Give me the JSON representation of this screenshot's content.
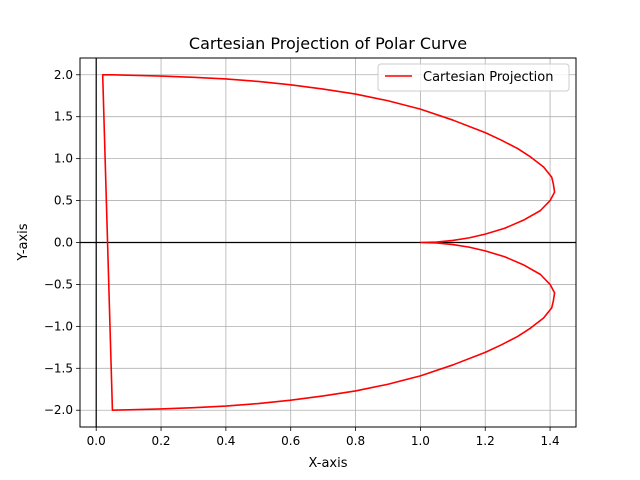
{
  "chart_data": {
    "type": "line",
    "title": "Cartesian Projection of Polar Curve",
    "xlabel": "X-axis",
    "ylabel": "Y-axis",
    "xlim": [
      -0.05,
      1.48
    ],
    "ylim": [
      -2.2,
      2.2
    ],
    "xticks": [
      0.0,
      0.2,
      0.4,
      0.6,
      0.8,
      1.0,
      1.2,
      1.4
    ],
    "xtick_labels": [
      "0.0",
      "0.2",
      "0.4",
      "0.6",
      "0.8",
      "1.0",
      "1.2",
      "1.4"
    ],
    "yticks": [
      -2.0,
      -1.5,
      -1.0,
      -0.5,
      0.0,
      0.5,
      1.0,
      1.5,
      2.0
    ],
    "ytick_labels": [
      "−2.0",
      "−1.5",
      "−1.0",
      "−0.5",
      "0.0",
      "0.5",
      "1.0",
      "1.5",
      "2.0"
    ],
    "grid": true,
    "reference_lines": {
      "x": 0,
      "y": 0,
      "color": "#000000"
    },
    "legend_position": "upper-right",
    "series": [
      {
        "name": "Cartesian Projection",
        "color": "#ff0000",
        "points": [
          [
            1.0,
            0.0
          ],
          [
            1.05,
            0.005
          ],
          [
            1.1,
            0.025
          ],
          [
            1.15,
            0.055
          ],
          [
            1.2,
            0.1
          ],
          [
            1.26,
            0.17
          ],
          [
            1.32,
            0.27
          ],
          [
            1.37,
            0.38
          ],
          [
            1.4,
            0.5
          ],
          [
            1.414,
            0.6
          ],
          [
            1.41,
            0.7
          ],
          [
            1.405,
            0.78
          ],
          [
            1.38,
            0.9
          ],
          [
            1.34,
            1.02
          ],
          [
            1.3,
            1.12
          ],
          [
            1.25,
            1.22
          ],
          [
            1.2,
            1.31
          ],
          [
            1.1,
            1.46
          ],
          [
            1.0,
            1.59
          ],
          [
            0.9,
            1.69
          ],
          [
            0.8,
            1.77
          ],
          [
            0.7,
            1.83
          ],
          [
            0.6,
            1.88
          ],
          [
            0.5,
            1.92
          ],
          [
            0.4,
            1.95
          ],
          [
            0.3,
            1.97
          ],
          [
            0.2,
            1.985
          ],
          [
            0.1,
            1.995
          ],
          [
            0.05,
            2.0
          ],
          [
            0.02,
            2.0
          ],
          [
            0.05,
            -2.0
          ],
          [
            0.1,
            -1.995
          ],
          [
            0.2,
            -1.985
          ],
          [
            0.3,
            -1.97
          ],
          [
            0.4,
            -1.95
          ],
          [
            0.5,
            -1.92
          ],
          [
            0.6,
            -1.88
          ],
          [
            0.7,
            -1.83
          ],
          [
            0.8,
            -1.77
          ],
          [
            0.9,
            -1.69
          ],
          [
            1.0,
            -1.59
          ],
          [
            1.1,
            -1.46
          ],
          [
            1.2,
            -1.31
          ],
          [
            1.25,
            -1.22
          ],
          [
            1.3,
            -1.12
          ],
          [
            1.34,
            -1.02
          ],
          [
            1.38,
            -0.9
          ],
          [
            1.405,
            -0.78
          ],
          [
            1.41,
            -0.7
          ],
          [
            1.414,
            -0.6
          ],
          [
            1.4,
            -0.5
          ],
          [
            1.37,
            -0.38
          ],
          [
            1.32,
            -0.27
          ],
          [
            1.26,
            -0.17
          ],
          [
            1.2,
            -0.1
          ],
          [
            1.15,
            -0.055
          ],
          [
            1.1,
            -0.025
          ],
          [
            1.05,
            -0.005
          ],
          [
            1.0,
            0.0
          ]
        ]
      }
    ]
  }
}
